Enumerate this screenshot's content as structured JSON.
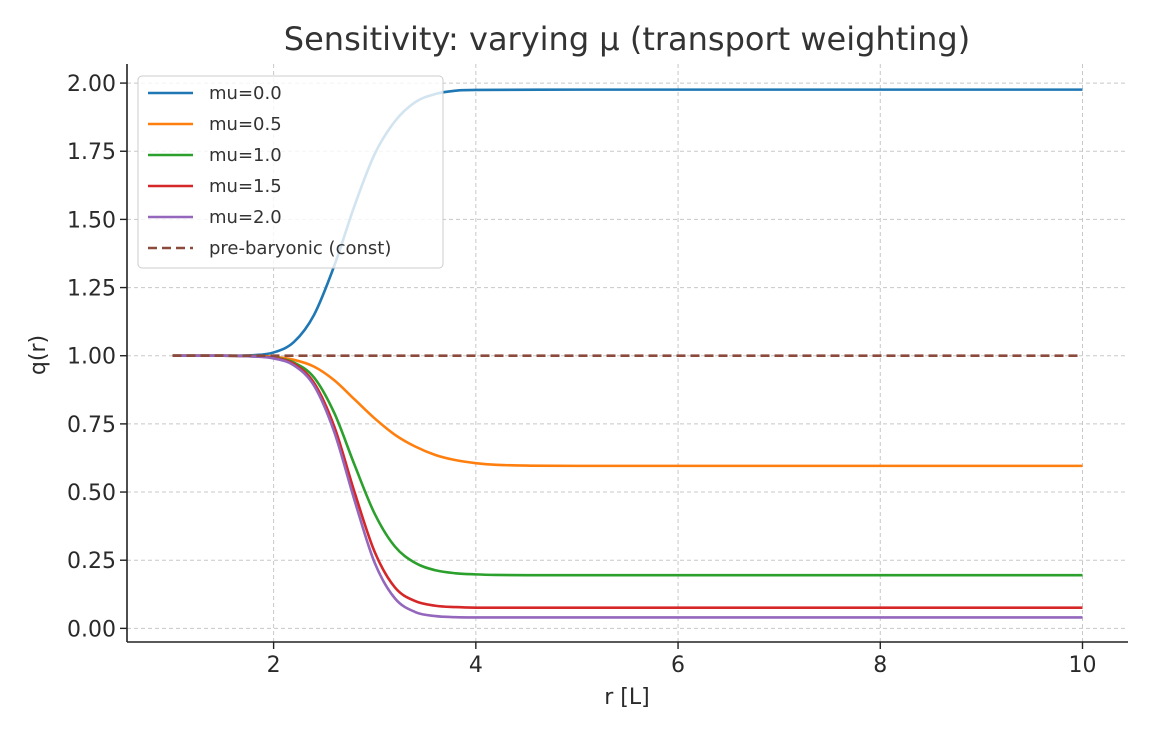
{
  "chart_data": {
    "type": "line",
    "title": "Sensitivity: varying μ (transport weighting)",
    "xlabel": "r [L]",
    "ylabel": "q(r)",
    "xlim": [
      0.55,
      10.45
    ],
    "ylim": [
      -0.05,
      2.07
    ],
    "xticks": [
      2,
      4,
      6,
      8,
      10
    ],
    "xtick_labels": [
      "2",
      "4",
      "6",
      "8",
      "10"
    ],
    "yticks": [
      0.0,
      0.25,
      0.5,
      0.75,
      1.0,
      1.25,
      1.5,
      1.75,
      2.0
    ],
    "ytick_labels": [
      "0.00",
      "0.25",
      "0.50",
      "0.75",
      "1.00",
      "1.25",
      "1.50",
      "1.75",
      "2.00"
    ],
    "grid": true,
    "legend_position": "top-left",
    "series": [
      {
        "name": "mu=0.0",
        "color": "#1f77b4",
        "style": "solid",
        "x": [
          1.0,
          1.5,
          1.8,
          2.0,
          2.2,
          2.4,
          2.6,
          2.8,
          3.0,
          3.2,
          3.4,
          3.6,
          3.8,
          4.0,
          5.0,
          6.0,
          7.0,
          8.0,
          9.0,
          10.0
        ],
        "y": [
          1.0,
          1.0,
          1.002,
          1.012,
          1.05,
          1.15,
          1.33,
          1.55,
          1.74,
          1.86,
          1.93,
          1.96,
          1.972,
          1.975,
          1.976,
          1.976,
          1.976,
          1.976,
          1.976,
          1.976
        ]
      },
      {
        "name": "mu=0.5",
        "color": "#ff7f0e",
        "style": "solid",
        "x": [
          1.0,
          1.5,
          1.8,
          2.0,
          2.2,
          2.4,
          2.6,
          2.8,
          3.0,
          3.2,
          3.4,
          3.6,
          3.8,
          4.0,
          4.2,
          4.5,
          5.0,
          6.0,
          7.0,
          8.0,
          9.0,
          10.0
        ],
        "y": [
          1.0,
          1.0,
          0.999,
          0.996,
          0.985,
          0.96,
          0.91,
          0.84,
          0.77,
          0.71,
          0.667,
          0.636,
          0.617,
          0.606,
          0.6,
          0.597,
          0.596,
          0.596,
          0.596,
          0.596,
          0.596,
          0.596
        ]
      },
      {
        "name": "mu=1.0",
        "color": "#2ca02c",
        "style": "solid",
        "x": [
          1.0,
          1.5,
          1.8,
          2.0,
          2.2,
          2.4,
          2.6,
          2.8,
          3.0,
          3.2,
          3.4,
          3.6,
          3.8,
          4.0,
          4.2,
          4.5,
          5.0,
          6.0,
          7.0,
          8.0,
          9.0,
          10.0
        ],
        "y": [
          1.0,
          1.0,
          0.998,
          0.993,
          0.975,
          0.92,
          0.79,
          0.6,
          0.42,
          0.3,
          0.24,
          0.213,
          0.202,
          0.198,
          0.196,
          0.195,
          0.195,
          0.195,
          0.195,
          0.195,
          0.195,
          0.195
        ]
      },
      {
        "name": "mu=1.5",
        "color": "#d62728",
        "style": "solid",
        "x": [
          1.0,
          1.5,
          1.8,
          2.0,
          2.2,
          2.4,
          2.6,
          2.8,
          3.0,
          3.2,
          3.4,
          3.6,
          3.8,
          4.0,
          4.2,
          4.5,
          5.0,
          6.0,
          7.0,
          8.0,
          9.0,
          10.0
        ],
        "y": [
          1.0,
          1.0,
          0.998,
          0.992,
          0.97,
          0.9,
          0.74,
          0.5,
          0.28,
          0.15,
          0.1,
          0.083,
          0.078,
          0.076,
          0.076,
          0.076,
          0.076,
          0.076,
          0.076,
          0.076,
          0.076,
          0.076
        ]
      },
      {
        "name": "mu=2.0",
        "color": "#9467bd",
        "style": "solid",
        "x": [
          1.0,
          1.5,
          1.8,
          2.0,
          2.2,
          2.4,
          2.6,
          2.8,
          3.0,
          3.2,
          3.4,
          3.6,
          3.8,
          4.0,
          4.2,
          4.5,
          5.0,
          6.0,
          7.0,
          8.0,
          9.0,
          10.0
        ],
        "y": [
          1.0,
          1.0,
          0.997,
          0.99,
          0.965,
          0.89,
          0.72,
          0.47,
          0.24,
          0.11,
          0.06,
          0.045,
          0.041,
          0.04,
          0.04,
          0.04,
          0.04,
          0.04,
          0.04,
          0.04,
          0.04,
          0.04
        ]
      },
      {
        "name": "pre-baryonic (const)",
        "color": "#8c4a3c",
        "style": "dashed",
        "x": [
          1.0,
          10.0
        ],
        "y": [
          1.0,
          1.0
        ]
      }
    ]
  }
}
